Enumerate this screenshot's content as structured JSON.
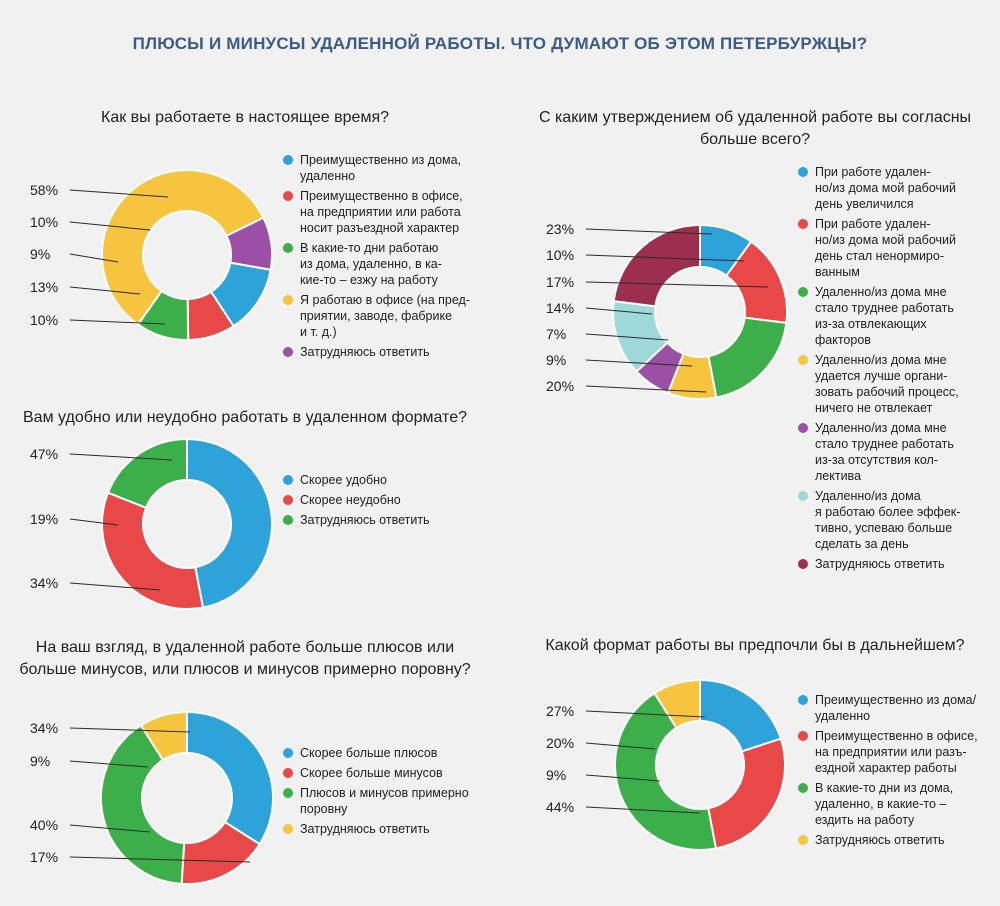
{
  "title": "ПЛЮСЫ И МИНУСЫ УДАЛЕННОЙ РАБОТЫ. ЧТО ДУМАЮТ ОБ ЭТОМ ПЕТЕРБУРЖЦЫ?",
  "colors": {
    "blue": "#2ea3da",
    "red": "#e84848",
    "green": "#3daf4a",
    "yellow": "#f6c43e",
    "purple": "#9b4fa6",
    "lightblue": "#9ed8d9",
    "maroon": "#9c2e4e"
  },
  "chart_data": [
    {
      "type": "pie",
      "title": "Как вы работаете в настоящее время?",
      "labels": [
        "Преимущественно из дома, удаленно",
        "Преимущественно в офисе, на предприятии или работа носит разъездной характер",
        "В какие-то дни работаю из дома, удаленно, в какие-то – езжу на работу",
        "Я работаю в офисе (на предприятии, заводе, фабрике и т. д.)",
        "Затрудняюсь ответить"
      ],
      "legend_lines": [
        [
          "Преимущественно из дома,",
          "удаленно"
        ],
        [
          "Преимущественно в офисе,",
          "на предприятии или работа",
          "носит разъездной характер"
        ],
        [
          "В какие-то дни работаю",
          "из дома, удаленно, в ка-",
          "кие-то – езжу на работу"
        ],
        [
          "Я работаю в офисе (на пред-",
          "приятии, заводе, фабрике",
          "и т. д.)"
        ],
        [
          "Затрудняюсь ответить"
        ]
      ],
      "values": [
        13,
        9,
        10,
        58,
        10
      ],
      "colors": [
        "blue",
        "red",
        "green",
        "yellow",
        "purple"
      ],
      "pct_labels": [
        "58%",
        "10%",
        "9%",
        "13%",
        "10%"
      ]
    },
    {
      "type": "pie",
      "title": "Вам удобно или неудобно работать в удаленном формате?",
      "labels": [
        "Скорее удобно",
        "Скорее неудобно",
        "Затрудняюсь ответить"
      ],
      "legend_lines": [
        [
          "Скорее удобно"
        ],
        [
          "Скорее неудобно"
        ],
        [
          "Затрудняюсь ответить"
        ]
      ],
      "values": [
        47,
        34,
        19
      ],
      "colors": [
        "blue",
        "red",
        "green"
      ],
      "pct_labels": [
        "47%",
        "19%",
        "34%"
      ]
    },
    {
      "type": "pie",
      "title": "На ваш взгляд, в удаленной работе больше плюсов или больше минусов, или плюсов и минусов примерно поровну?",
      "labels": [
        "Скорее больше плюсов",
        "Скорее больше минусов",
        "Плюсов и минусов примерно поровну",
        "Затрудняюсь ответить"
      ],
      "legend_lines": [
        [
          "Скорее больше плюсов"
        ],
        [
          "Скорее больше минусов"
        ],
        [
          "Плюсов и минусов примерно",
          "поровну"
        ],
        [
          "Затрудняюсь ответить"
        ]
      ],
      "values": [
        34,
        17,
        40,
        9
      ],
      "colors": [
        "blue",
        "red",
        "green",
        "yellow"
      ],
      "pct_labels": [
        "34%",
        "9%",
        "40%",
        "17%"
      ]
    },
    {
      "type": "pie",
      "title": "С каким утверждением об удаленной работе вы согласны больше всего?",
      "labels": [
        "При работе удаленно/из дома мой рабочий день увеличился",
        "При работе удаленно/из дома мой рабочий день стал ненормированным",
        "Удаленно/из дома мне стало труднее работать из-за отвлекающих факторов",
        "Удаленно/из дома мне удается лучше организовать рабочий процесс, ничего не отвлекает",
        "Удаленно/из дома мне стало труднее работать из-за отсутствия коллектива",
        "Удаленно/из дома я работаю более эффективно, успеваю больше сделать за день",
        "Затрудняюсь ответить"
      ],
      "legend_lines": [
        [
          "При работе удален-",
          "но/из дома мой рабочий",
          "день увеличился"
        ],
        [
          "При работе удален-",
          "но/из дома мой рабочий",
          "день стал ненормиро-",
          "ванным"
        ],
        [
          "Удаленно/из дома мне",
          "стало труднее работать",
          "из-за отвлекающих",
          "факторов"
        ],
        [
          "Удаленно/из дома мне",
          "удается лучше органи-",
          "зовать рабочий процесс,",
          "ничего не отвлекает"
        ],
        [
          "Удаленно/из дома мне",
          "стало труднее работать",
          "из-за отсутствия кол-",
          "лектива"
        ],
        [
          "Удаленно/из дома",
          "я работаю более эффек-",
          "тивно, успеваю больше",
          "сделать за день"
        ],
        [
          "Затрудняюсь ответить"
        ]
      ],
      "values": [
        10,
        17,
        20,
        9,
        7,
        14,
        23
      ],
      "colors": [
        "blue",
        "red",
        "green",
        "yellow",
        "purple",
        "lightblue",
        "maroon"
      ],
      "pct_labels": [
        "23%",
        "10%",
        "17%",
        "14%",
        "7%",
        "9%",
        "20%"
      ]
    },
    {
      "type": "pie",
      "title": "Какой формат работы вы предпочли бы в дальнейшем?",
      "labels": [
        "Преимущественно из дома/удаленно",
        "Преимущественно в офисе, на предприятии или разъездной характер работы",
        "В какие-то дни из дома, удаленно, в какие-то – ездить на работу",
        "Затрудняюсь ответить"
      ],
      "legend_lines": [
        [
          "Преимущественно из дома/",
          "удаленно"
        ],
        [
          "Преимущественно в офисе,",
          "на предприятии или разъ-",
          "ездной характер работы"
        ],
        [
          "В какие-то дни из дома,",
          "удаленно, в какие-то –",
          "ездить на работу"
        ],
        [
          "Затрудняюсь ответить"
        ]
      ],
      "values": [
        20,
        27,
        44,
        9
      ],
      "colors": [
        "blue",
        "red",
        "green",
        "yellow"
      ],
      "pct_labels": [
        "27%",
        "20%",
        "9%",
        "44%"
      ]
    }
  ]
}
